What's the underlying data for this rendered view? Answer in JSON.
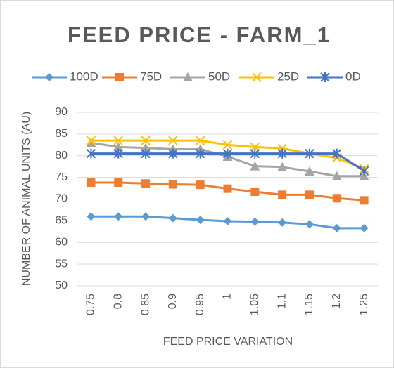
{
  "chart_data": {
    "type": "line",
    "title": "FEED PRICE - FARM_1",
    "x_label": "FEED PRICE VARIATION",
    "y_label": "NUMBER OF ANIMAL UNITS (AU)",
    "categories": [
      "0.75",
      "0.8",
      "0.85",
      "0.9",
      "0.95",
      "1",
      "1.05",
      "1.1",
      "1.15",
      "1.2",
      "1.25"
    ],
    "series": [
      {
        "name": "100D",
        "color": "#5b9bd5",
        "marker": "diamond",
        "values": [
          66,
          66,
          66,
          65.6,
          65.2,
          64.9,
          64.8,
          64.6,
          64.2,
          63.3,
          63.3
        ]
      },
      {
        "name": "75D",
        "color": "#ed7d31",
        "marker": "square",
        "values": [
          73.8,
          73.8,
          73.6,
          73.4,
          73.3,
          72.4,
          71.7,
          71,
          71,
          70.2,
          69.7
        ]
      },
      {
        "name": "50D",
        "color": "#a5a5a5",
        "marker": "triangle",
        "values": [
          83,
          82,
          81.8,
          81.5,
          81.5,
          79.8,
          77.6,
          77.4,
          76.4,
          75.3,
          75.3
        ]
      },
      {
        "name": "25D",
        "color": "#ffc000",
        "marker": "x",
        "values": [
          83.5,
          83.5,
          83.5,
          83.5,
          83.5,
          82.5,
          82,
          81.7,
          80.5,
          79.5,
          77
        ]
      },
      {
        "name": "0D",
        "color": "#4472c4",
        "marker": "star",
        "values": [
          80.5,
          80.5,
          80.5,
          80.5,
          80.5,
          80.5,
          80.5,
          80.5,
          80.5,
          80.5,
          76.5
        ]
      }
    ],
    "ylim": [
      50,
      90
    ],
    "yticks": [
      50,
      55,
      60,
      65,
      70,
      75,
      80,
      85,
      90
    ],
    "grid": true,
    "legend": "top"
  }
}
